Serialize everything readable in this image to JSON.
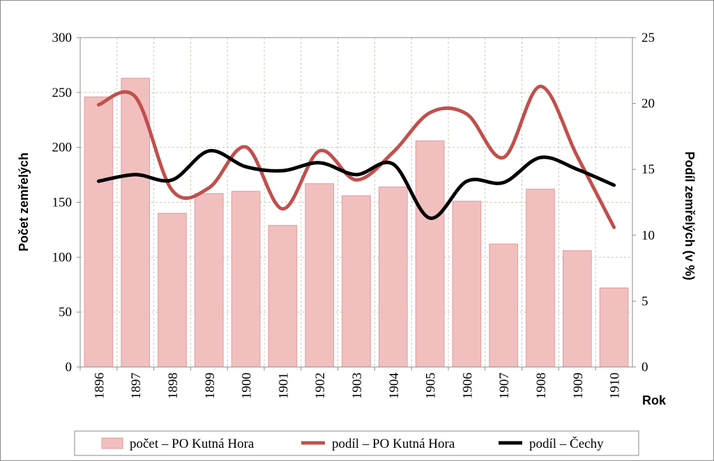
{
  "chart_data": {
    "type": "bar",
    "categories": [
      "1896",
      "1897",
      "1898",
      "1899",
      "1900",
      "1901",
      "1902",
      "1903",
      "1904",
      "1905",
      "1906",
      "1907",
      "1908",
      "1909",
      "1910"
    ],
    "xlabel": "Rok",
    "ylabel": "Počet zemřelých",
    "y2label": "Podíl zemřelých (v %)",
    "ylim": [
      0,
      300
    ],
    "y2lim": [
      0,
      25
    ],
    "yticks": [
      0,
      50,
      100,
      150,
      200,
      250,
      300
    ],
    "y2ticks": [
      0,
      5,
      10,
      15,
      20,
      25
    ],
    "grid": true,
    "legend_position": "bottom",
    "series": [
      {
        "name": "počet – PO Kutná Hora",
        "kind": "bar",
        "axis": "left",
        "color": "#f2bfbf",
        "edge": "#e09a9a",
        "values": [
          246,
          263,
          140,
          158,
          160,
          129,
          167,
          156,
          164,
          206,
          151,
          112,
          162,
          106,
          72
        ]
      },
      {
        "name": "podíl – PO Kutná Hora",
        "kind": "line",
        "axis": "right",
        "color": "#c0504d",
        "values": [
          19.9,
          20.5,
          13.4,
          13.6,
          16.7,
          12.0,
          16.4,
          14.2,
          16.3,
          19.3,
          19.2,
          15.9,
          21.3,
          16.0,
          10.6
        ]
      },
      {
        "name": "podíl – Čechy",
        "kind": "line",
        "axis": "right",
        "color": "#000000",
        "values": [
          14.1,
          14.6,
          14.2,
          16.4,
          15.2,
          14.9,
          15.5,
          14.6,
          15.4,
          11.3,
          14.1,
          14.0,
          15.9,
          15.0,
          13.8
        ]
      }
    ]
  }
}
